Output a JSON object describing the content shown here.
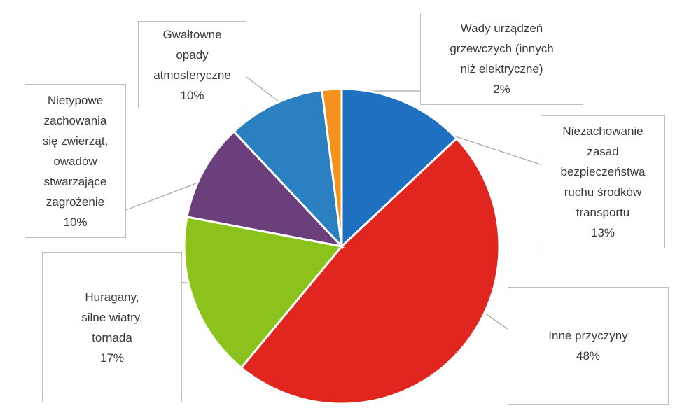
{
  "chart_data": {
    "type": "pie",
    "categories": [
      "Niezachowanie\nzasad\nbezpieczeństwa\nruchu środków\ntransportu",
      "Inne przyczyny",
      "Huragany,\nsilne wiatry,\ntornada",
      "Nietypowe\nzachowania\nsię zwierząt,\nowadów\nstwarzające\nzagrożenie",
      "Gwałtowne\nopady\natmosferyczne",
      "Wady urządzeń\ngrzewczych (innych\nniż elektryczne)"
    ],
    "values": [
      13,
      48,
      17,
      10,
      10,
      2
    ],
    "value_labels": [
      "13%",
      "48%",
      "17%",
      "10%",
      "10%",
      "2%"
    ],
    "colors": [
      "#1f70c1",
      "#e1261f",
      "#8cc21c",
      "#6a3f7b",
      "#2b80c2",
      "#f5921e"
    ]
  }
}
